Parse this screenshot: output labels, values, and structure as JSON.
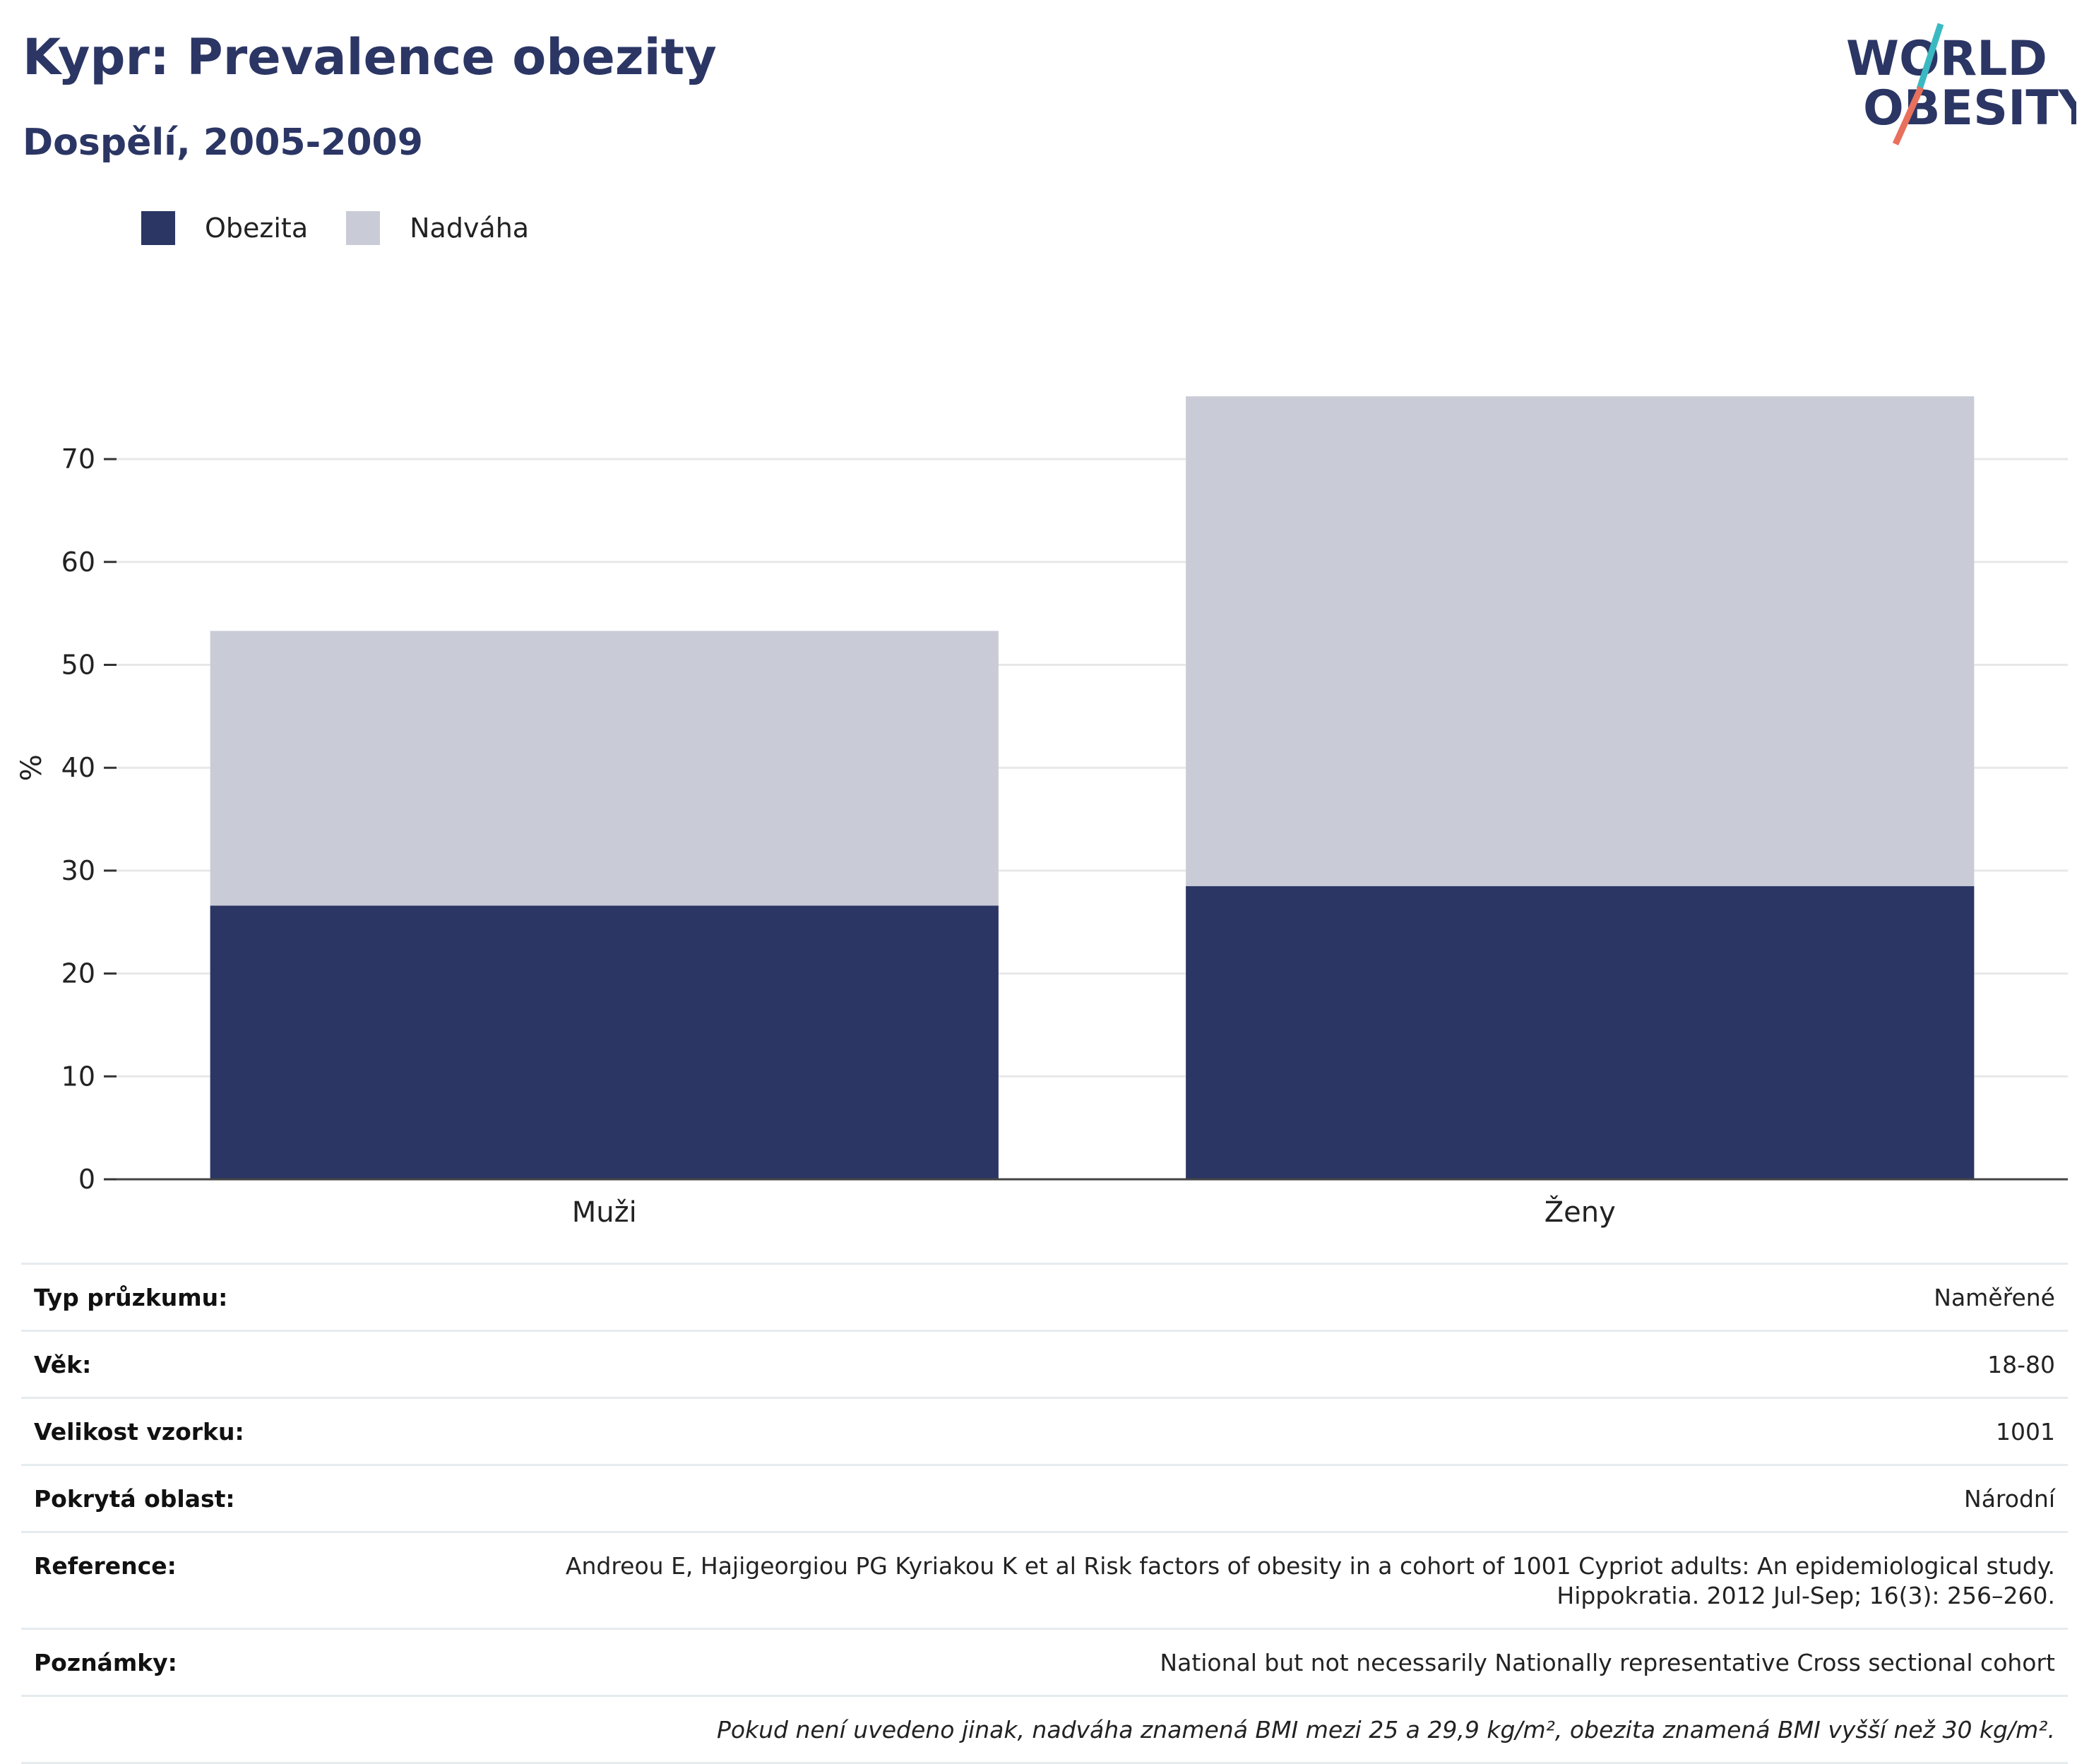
{
  "header": {
    "title": "Kypr: Prevalence obezity",
    "subtitle": "Dospělí, 2005-2009"
  },
  "logo": {
    "line1": "WORLD",
    "line2": "OBESITY",
    "colors": {
      "text": "#2b3664",
      "slash_teal": "#3bb9c2",
      "slash_red": "#e8705c"
    }
  },
  "legend": [
    {
      "label": "Obezita",
      "color": "#2b3664"
    },
    {
      "label": "Nadváha",
      "color": "#c9ccd7"
    }
  ],
  "chart_data": {
    "type": "bar",
    "stacked": true,
    "categories": [
      "Muži",
      "Ženy"
    ],
    "series": [
      {
        "name": "Obezita",
        "values": [
          26.6,
          28.5
        ],
        "color": "#2b3664"
      },
      {
        "name": "Nadváha",
        "values": [
          26.7,
          47.6
        ],
        "color": "#c9ccd7"
      }
    ],
    "ylabel": "%",
    "xlabel": "",
    "ylim": [
      0,
      80
    ],
    "yticks": [
      0,
      10,
      20,
      30,
      40,
      50,
      60,
      70
    ],
    "grid": true,
    "legend_position": "top-left"
  },
  "info": [
    {
      "label": "Typ průzkumu:",
      "value": "Naměřené"
    },
    {
      "label": "Věk:",
      "value": "18-80"
    },
    {
      "label": "Velikost vzorku:",
      "value": "1001"
    },
    {
      "label": "Pokrytá oblast:",
      "value": "Národní"
    },
    {
      "label": "Reference:",
      "value": "Andreou E, Hajigeorgiou PG Kyriakou K et al Risk factors of obesity in a cohort of 1001 Cypriot adults: An epidemiological study. Hippokratia. 2012 Jul-Sep; 16(3): 256–260."
    },
    {
      "label": "Poznámky:",
      "value": "National but not necessarily Nationally representative Cross sectional cohort"
    }
  ],
  "footnote": "Pokud není uvedeno jinak, nadváha znamená BMI mezi 25 a 29,9 kg/m², obezita znamená BMI vyšší než 30 kg/m²."
}
